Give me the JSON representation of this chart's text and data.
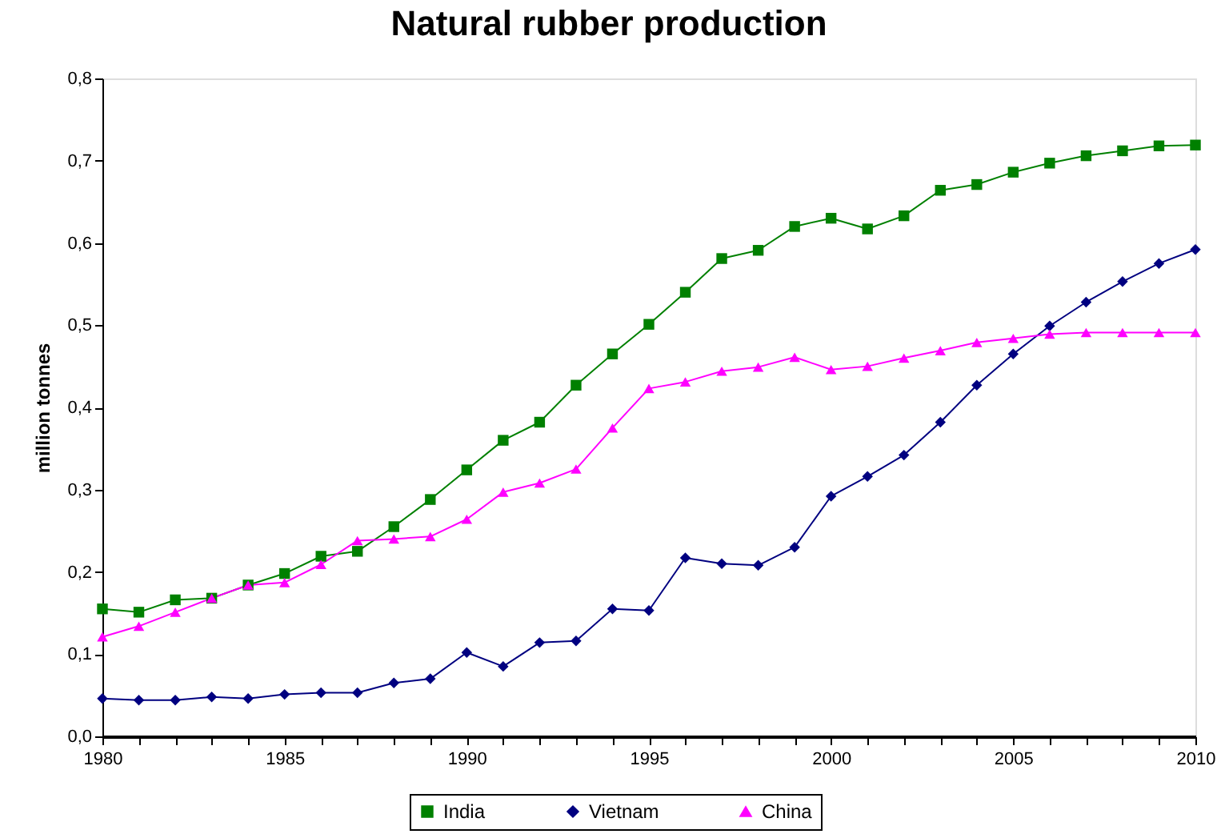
{
  "chart_data": {
    "type": "line",
    "title": "Natural rubber production",
    "ylabel": "million tonnes",
    "x": [
      1980,
      1981,
      1982,
      1983,
      1984,
      1985,
      1986,
      1987,
      1988,
      1989,
      1990,
      1991,
      1992,
      1993,
      1994,
      1995,
      1996,
      1997,
      1998,
      1999,
      2000,
      2001,
      2002,
      2003,
      2004,
      2005,
      2006,
      2007,
      2008,
      2009,
      2010
    ],
    "series": [
      {
        "name": "India",
        "color": "#008000",
        "marker": "square",
        "values": [
          0.155,
          0.151,
          0.166,
          0.168,
          0.184,
          0.198,
          0.219,
          0.225,
          0.255,
          0.288,
          0.324,
          0.36,
          0.382,
          0.427,
          0.465,
          0.501,
          0.54,
          0.581,
          0.591,
          0.62,
          0.63,
          0.617,
          0.633,
          0.664,
          0.671,
          0.686,
          0.697,
          0.706,
          0.712,
          0.718,
          0.719
        ]
      },
      {
        "name": "Vietnam",
        "color": "#000080",
        "marker": "diamond",
        "values": [
          0.046,
          0.044,
          0.044,
          0.048,
          0.046,
          0.051,
          0.053,
          0.053,
          0.065,
          0.07,
          0.102,
          0.085,
          0.114,
          0.116,
          0.155,
          0.153,
          0.217,
          0.21,
          0.208,
          0.23,
          0.292,
          0.316,
          0.342,
          0.382,
          0.427,
          0.465,
          0.499,
          0.528,
          0.553,
          0.575,
          0.592
        ]
      },
      {
        "name": "China",
        "color": "#ff00ff",
        "marker": "triangle",
        "values": [
          0.121,
          0.134,
          0.151,
          0.168,
          0.184,
          0.187,
          0.209,
          0.238,
          0.24,
          0.243,
          0.264,
          0.297,
          0.308,
          0.325,
          0.375,
          0.423,
          0.431,
          0.444,
          0.449,
          0.461,
          0.446,
          0.45,
          0.46,
          0.469,
          0.479,
          0.484,
          0.489,
          0.491,
          0.491,
          0.491,
          0.491
        ]
      }
    ],
    "xlim": [
      1980,
      2010
    ],
    "xticks": [
      1980,
      {
        "value": 1981,
        "label": null
      },
      {
        "value": 1982,
        "label": null
      },
      {
        "value": 1983,
        "label": null
      },
      {
        "value": 1984,
        "label": null
      },
      1985,
      {
        "value": 1986,
        "label": null
      },
      {
        "value": 1987,
        "label": null
      },
      {
        "value": 1988,
        "label": null
      },
      {
        "value": 1989,
        "label": null
      },
      1990,
      {
        "value": 1991,
        "label": null
      },
      {
        "value": 1992,
        "label": null
      },
      {
        "value": 1993,
        "label": null
      },
      {
        "value": 1994,
        "label": null
      },
      1995,
      {
        "value": 1996,
        "label": null
      },
      {
        "value": 1997,
        "label": null
      },
      {
        "value": 1998,
        "label": null
      },
      {
        "value": 1999,
        "label": null
      },
      2000,
      {
        "value": 2001,
        "label": null
      },
      {
        "value": 2002,
        "label": null
      },
      {
        "value": 2003,
        "label": null
      },
      {
        "value": 2004,
        "label": null
      },
      2005,
      {
        "value": 2006,
        "label": null
      },
      {
        "value": 2007,
        "label": null
      },
      {
        "value": 2008,
        "label": null
      },
      {
        "value": 2009,
        "label": null
      },
      2010
    ],
    "ylim": [
      0,
      0.8
    ],
    "yticks": [
      {
        "value": 0,
        "label": "0,0"
      },
      {
        "value": 0.1,
        "label": "0,1"
      },
      {
        "value": 0.2,
        "label": "0,2"
      },
      {
        "value": 0.3,
        "label": "0,3"
      },
      {
        "value": 0.4,
        "label": "0,4"
      },
      {
        "value": 0.5,
        "label": "0,5"
      },
      {
        "value": 0.6,
        "label": "0,6"
      },
      {
        "value": 0.7,
        "label": "0,7"
      },
      {
        "value": 0.8,
        "label": "0,8"
      }
    ],
    "grid": false,
    "legend": "bottom",
    "line_style": "solid"
  }
}
